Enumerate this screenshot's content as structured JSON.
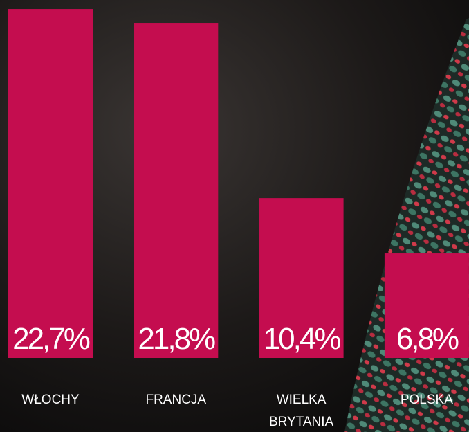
{
  "chart_data": {
    "type": "bar",
    "categories": [
      "WŁOCHY",
      "FRANCJA",
      "WIELKA BRYTANIA",
      "POLSKA"
    ],
    "values": [
      22.7,
      21.8,
      10.4,
      6.8
    ],
    "value_labels": [
      "22,7%",
      "21,8%",
      "10,4%",
      "6,8%"
    ],
    "color": "#c40d4f"
  }
}
